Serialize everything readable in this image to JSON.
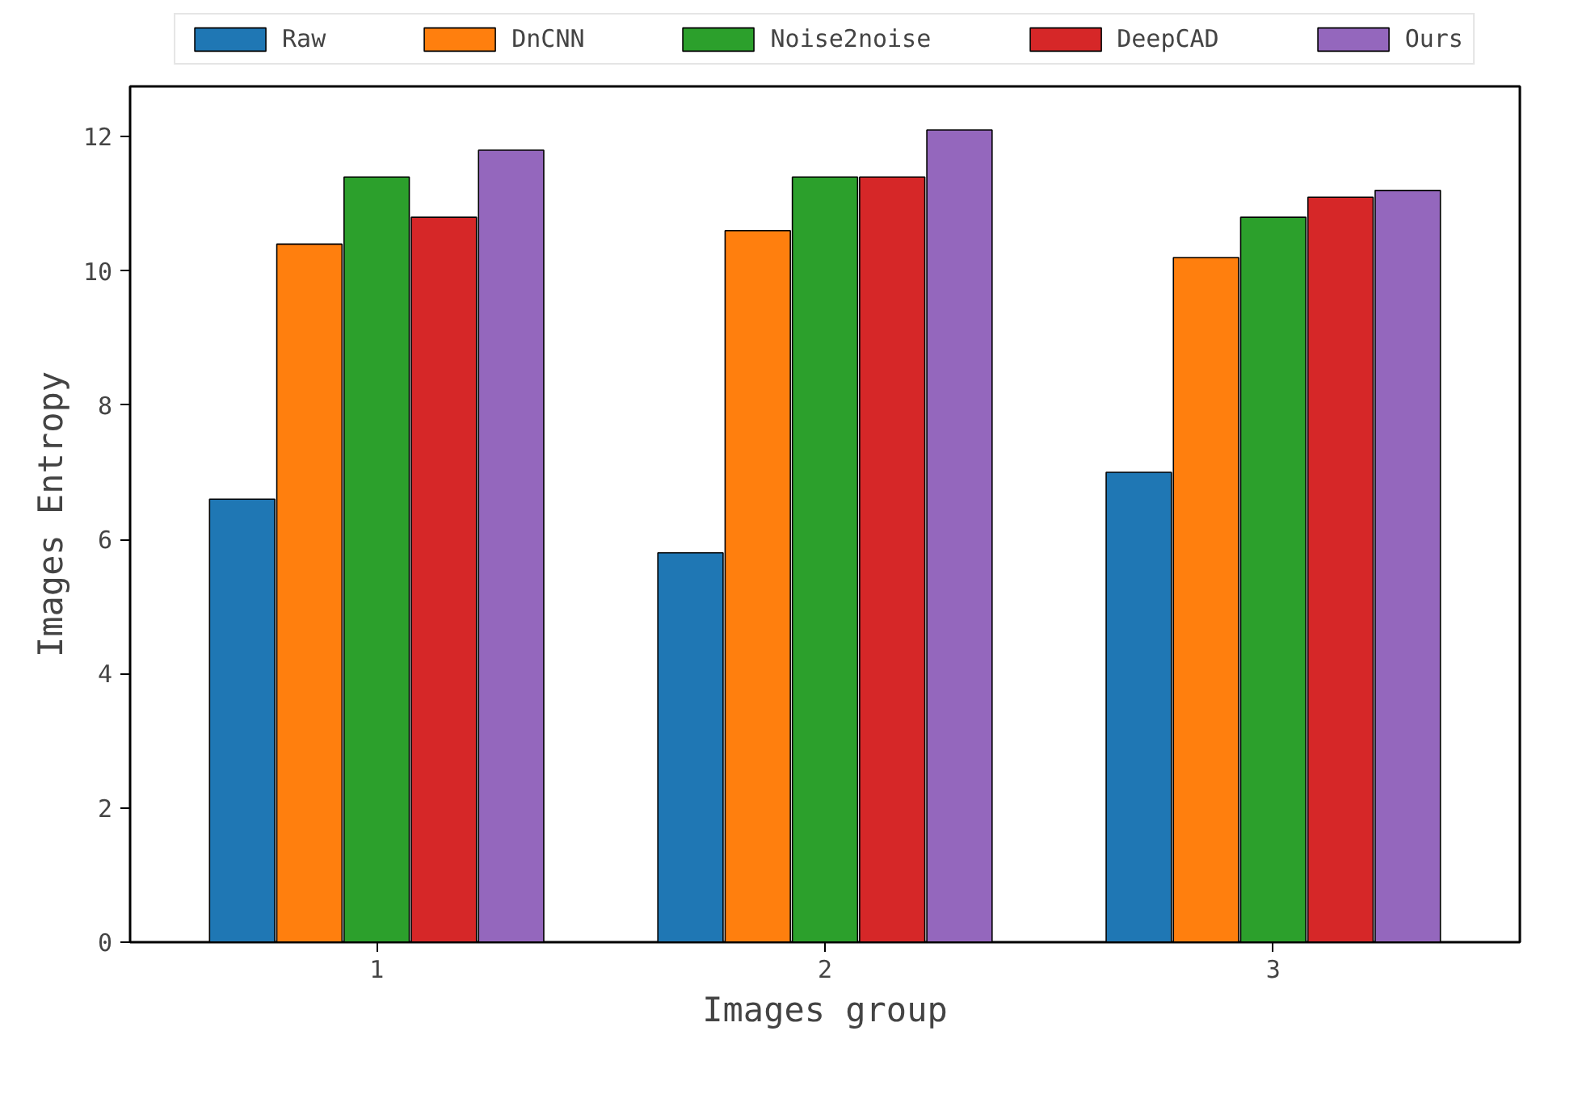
{
  "chart_data": {
    "type": "bar",
    "xlabel": "Images group",
    "ylabel": "Images Entropy",
    "categories": [
      "1",
      "2",
      "3"
    ],
    "series": [
      {
        "name": "Raw",
        "color": "#1f77b4",
        "values": [
          6.6,
          5.8,
          7.0
        ]
      },
      {
        "name": "DnCNN",
        "color": "#ff7f0e",
        "values": [
          10.4,
          10.6,
          10.2
        ]
      },
      {
        "name": "Noise2noise",
        "color": "#2ca02c",
        "values": [
          11.4,
          11.4,
          10.8
        ]
      },
      {
        "name": "DeepCAD",
        "color": "#d62728",
        "values": [
          10.8,
          11.4,
          11.1
        ]
      },
      {
        "name": "Ours",
        "color": "#9467bd",
        "values": [
          11.8,
          12.1,
          11.2
        ]
      }
    ],
    "ylim": [
      0,
      12.75
    ],
    "yticks": [
      0,
      2,
      4,
      6,
      8,
      10,
      12
    ],
    "grid": false,
    "legend": "top"
  }
}
